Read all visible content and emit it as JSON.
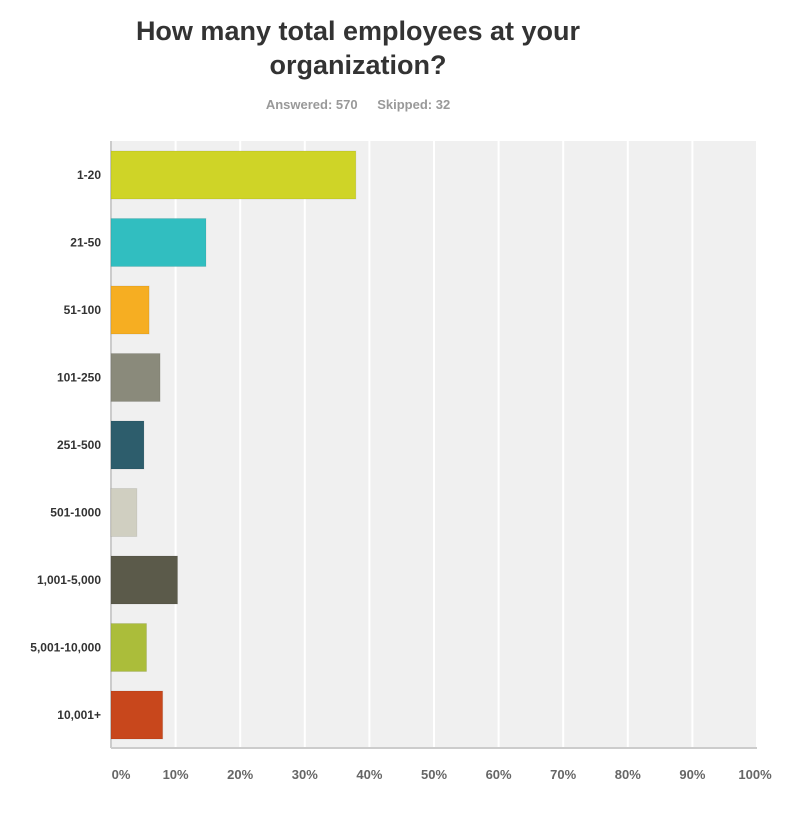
{
  "chart_data": {
    "type": "bar",
    "orientation": "horizontal",
    "title": "How many total employees at your organization?",
    "answered_label": "Answered: 570",
    "skipped_label": "Skipped: 32",
    "categories": [
      "1-20",
      "21-50",
      "51-100",
      "101-250",
      "251-500",
      "501-1000",
      "1,001-5,000",
      "5,001-10,000",
      "10,001+"
    ],
    "values": [
      37.9,
      14.7,
      5.9,
      7.6,
      5.1,
      4.0,
      10.3,
      5.5,
      8.0
    ],
    "colors": [
      "#cfd427",
      "#31bec0",
      "#f6ae22",
      "#8a8a7b",
      "#2d5d6c",
      "#d0cfc1",
      "#5b5a4a",
      "#abbd3a",
      "#c8471c"
    ],
    "xlim": [
      0,
      100
    ],
    "xticks": [
      "0%",
      "10%",
      "20%",
      "30%",
      "40%",
      "50%",
      "60%",
      "70%",
      "80%",
      "90%",
      "100%"
    ],
    "grid": true,
    "background": "#f0f0f0"
  }
}
